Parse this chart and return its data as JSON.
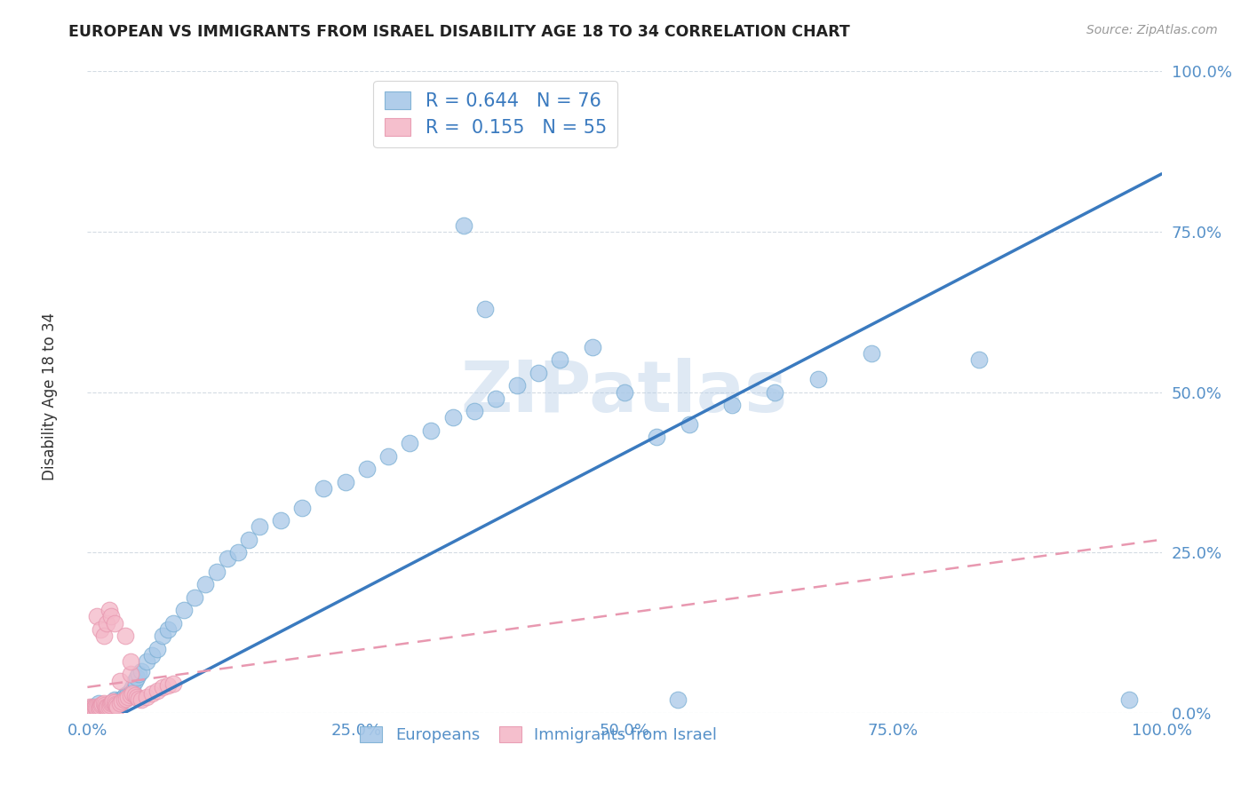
{
  "title": "EUROPEAN VS IMMIGRANTS FROM ISRAEL DISABILITY AGE 18 TO 34 CORRELATION CHART",
  "source": "Source: ZipAtlas.com",
  "ylabel": "Disability Age 18 to 34",
  "xlim": [
    0,
    1
  ],
  "ylim": [
    0,
    1
  ],
  "xtick_vals": [
    0,
    0.25,
    0.5,
    0.75,
    1.0
  ],
  "ytick_vals": [
    0,
    0.25,
    0.5,
    0.75,
    1.0
  ],
  "xtick_labels": [
    "0.0%",
    "25.0%",
    "50.0%",
    "75.0%",
    "100.0%"
  ],
  "ytick_labels": [
    "0.0%",
    "25.0%",
    "50.0%",
    "75.0%",
    "100.0%"
  ],
  "watermark": "ZIPatlas",
  "legend_R_blue": "0.644",
  "legend_N_blue": "76",
  "legend_R_pink": "0.155",
  "legend_N_pink": "55",
  "blue_color": "#a8c8e8",
  "blue_edge_color": "#7bafd4",
  "blue_line_color": "#3a7abf",
  "pink_color": "#f4b8c8",
  "pink_edge_color": "#e898b0",
  "pink_line_color": "#e898b0",
  "grid_color": "#d0d8e0",
  "background_color": "#ffffff",
  "tick_color": "#5590c8",
  "legend_label_color": "#3a7abf",
  "bottom_legend_color": "#5590c8",
  "blue_scatter_x": [
    0.005,
    0.007,
    0.008,
    0.01,
    0.01,
    0.012,
    0.013,
    0.015,
    0.015,
    0.017,
    0.018,
    0.019,
    0.02,
    0.021,
    0.022,
    0.023,
    0.024,
    0.025,
    0.026,
    0.027,
    0.028,
    0.03,
    0.031,
    0.032,
    0.033,
    0.034,
    0.035,
    0.036,
    0.038,
    0.04,
    0.042,
    0.044,
    0.046,
    0.048,
    0.05,
    0.055,
    0.06,
    0.065,
    0.07,
    0.075,
    0.08,
    0.09,
    0.1,
    0.11,
    0.12,
    0.13,
    0.14,
    0.15,
    0.16,
    0.18,
    0.2,
    0.22,
    0.24,
    0.26,
    0.28,
    0.3,
    0.32,
    0.34,
    0.36,
    0.38,
    0.4,
    0.42,
    0.44,
    0.47,
    0.5,
    0.53,
    0.56,
    0.6,
    0.64,
    0.68,
    0.73,
    0.83,
    0.55,
    0.35,
    0.37,
    0.97
  ],
  "blue_scatter_y": [
    0.01,
    0.005,
    0.008,
    0.005,
    0.015,
    0.008,
    0.01,
    0.005,
    0.012,
    0.006,
    0.009,
    0.01,
    0.007,
    0.015,
    0.01,
    0.012,
    0.008,
    0.02,
    0.015,
    0.018,
    0.013,
    0.02,
    0.016,
    0.018,
    0.022,
    0.025,
    0.028,
    0.025,
    0.03,
    0.035,
    0.04,
    0.05,
    0.055,
    0.06,
    0.065,
    0.08,
    0.09,
    0.1,
    0.12,
    0.13,
    0.14,
    0.16,
    0.18,
    0.2,
    0.22,
    0.24,
    0.25,
    0.27,
    0.29,
    0.3,
    0.32,
    0.35,
    0.36,
    0.38,
    0.4,
    0.42,
    0.44,
    0.46,
    0.47,
    0.49,
    0.51,
    0.53,
    0.55,
    0.57,
    0.5,
    0.43,
    0.45,
    0.48,
    0.5,
    0.52,
    0.56,
    0.55,
    0.02,
    0.76,
    0.63,
    0.02
  ],
  "pink_scatter_x": [
    0.002,
    0.003,
    0.004,
    0.005,
    0.006,
    0.007,
    0.008,
    0.009,
    0.01,
    0.011,
    0.012,
    0.013,
    0.014,
    0.015,
    0.016,
    0.017,
    0.018,
    0.019,
    0.02,
    0.021,
    0.022,
    0.023,
    0.024,
    0.025,
    0.026,
    0.027,
    0.028,
    0.03,
    0.032,
    0.034,
    0.036,
    0.038,
    0.04,
    0.042,
    0.044,
    0.046,
    0.048,
    0.05,
    0.055,
    0.06,
    0.065,
    0.07,
    0.075,
    0.08,
    0.009,
    0.012,
    0.015,
    0.018,
    0.02,
    0.03,
    0.04,
    0.022,
    0.025,
    0.035,
    0.04
  ],
  "pink_scatter_y": [
    0.01,
    0.008,
    0.006,
    0.005,
    0.007,
    0.009,
    0.008,
    0.007,
    0.006,
    0.008,
    0.01,
    0.012,
    0.014,
    0.015,
    0.012,
    0.01,
    0.008,
    0.009,
    0.01,
    0.012,
    0.015,
    0.016,
    0.018,
    0.016,
    0.014,
    0.012,
    0.01,
    0.015,
    0.018,
    0.02,
    0.022,
    0.025,
    0.028,
    0.03,
    0.028,
    0.025,
    0.022,
    0.02,
    0.025,
    0.03,
    0.035,
    0.04,
    0.042,
    0.045,
    0.15,
    0.13,
    0.12,
    0.14,
    0.16,
    0.05,
    0.06,
    0.15,
    0.14,
    0.12,
    0.08
  ],
  "blue_line_x": [
    0.0,
    1.0
  ],
  "blue_line_y": [
    -0.03,
    0.84
  ],
  "pink_line_x": [
    0.0,
    1.0
  ],
  "pink_line_y": [
    0.04,
    0.27
  ]
}
